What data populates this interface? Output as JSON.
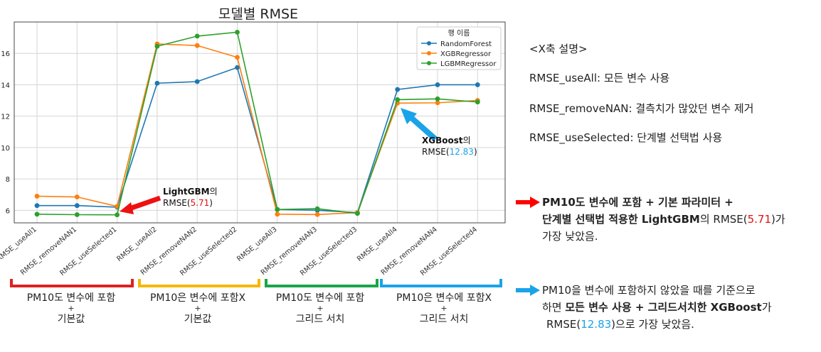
{
  "chart_data": {
    "type": "line",
    "title": "모델별 RMSE",
    "categories": [
      "RMSE_useAll1",
      "RMSE_removeNAN1",
      "RMSE_useSelected1",
      "RMSE_useAll2",
      "RMSE_removeNAN2",
      "RMSE_useSelected2",
      "RMSE_useAll3",
      "RMSE_removeNAN3",
      "RMSE_useSelected3",
      "RMSE_useAll4",
      "RMSE_removeNAN4",
      "RMSE_useSelected4"
    ],
    "series": [
      {
        "name": "RandomForest",
        "color": "#1f77b4",
        "values": [
          6.3,
          6.3,
          6.2,
          14.1,
          14.2,
          15.1,
          6.05,
          6.0,
          5.85,
          13.7,
          14.0,
          14.0
        ]
      },
      {
        "name": "XGBRegressor",
        "color": "#ff7f0e",
        "values": [
          6.9,
          6.85,
          6.25,
          16.6,
          16.5,
          15.75,
          5.75,
          5.73,
          5.85,
          12.83,
          12.85,
          13.0
        ]
      },
      {
        "name": "LGBMRegressor",
        "color": "#2ca02c",
        "values": [
          5.75,
          5.72,
          5.71,
          16.45,
          17.1,
          17.35,
          6.05,
          6.1,
          5.8,
          13.05,
          13.1,
          12.9
        ]
      }
    ],
    "ylim": [
      5.2,
      18.0
    ],
    "yticks": [
      6,
      8,
      10,
      12,
      14,
      16
    ],
    "grid": true,
    "legend": {
      "title": "행 이름",
      "placement": "top-right"
    },
    "annotations": {
      "lgbm": {
        "name": "LightGBM",
        "suffix": "의",
        "prefix": "RMSE(",
        "value": "5.71",
        "close": ")"
      },
      "xgb": {
        "name": "XGBoost",
        "suffix": "의",
        "prefix": "RMSE(",
        "value": "12.83",
        "close": ")"
      }
    },
    "groups": [
      {
        "line1": "PM10도 변수에 포함",
        "line2": "+",
        "line3": "기본값",
        "color": "#e02020"
      },
      {
        "line1": "PM10은 변수에 포함X",
        "line2": "+",
        "line3": "기본값",
        "color": "#f5b800"
      },
      {
        "line1": "PM10도 변수에 포함",
        "line2": "+",
        "line3": "그리드 서치",
        "color": "#1aa64a"
      },
      {
        "line1": "PM10은 변수에 포함X",
        "line2": "+",
        "line3": "그리드 서치",
        "color": "#1aa3e8"
      }
    ]
  },
  "xaxis_notes": {
    "title": "<X축 설명>",
    "items": [
      "RMSE_useAll: 모든 변수 사용",
      "RMSE_removeNAN: 결측치가 많았던 변수 제거",
      "RMSE_useSelected: 단계별 선택법 사용"
    ]
  },
  "summary1": {
    "line1": "PM10도 변수에 포함 + 기본 파라미터 +",
    "line2a": "단계별 선택법 적용한 LightGBM",
    "line2b": "의 RMSE(",
    "value": "5.71",
    "line2c": ")가",
    "line3": "가장 낮았음.",
    "arrow_color": "#ff0000"
  },
  "summary2": {
    "line1": "PM10을 변수에 포함하지 않았을 때를 기준으로",
    "line2a": "하면 ",
    "line2b": "모든 변수 사용 + 그리드서치한 XGBoost",
    "line2c": "가",
    "line3a": "RMSE(",
    "value": "12.83",
    "line3b": ")으로 가장 낮았음.",
    "arrow_color": "#1aa3e8"
  }
}
